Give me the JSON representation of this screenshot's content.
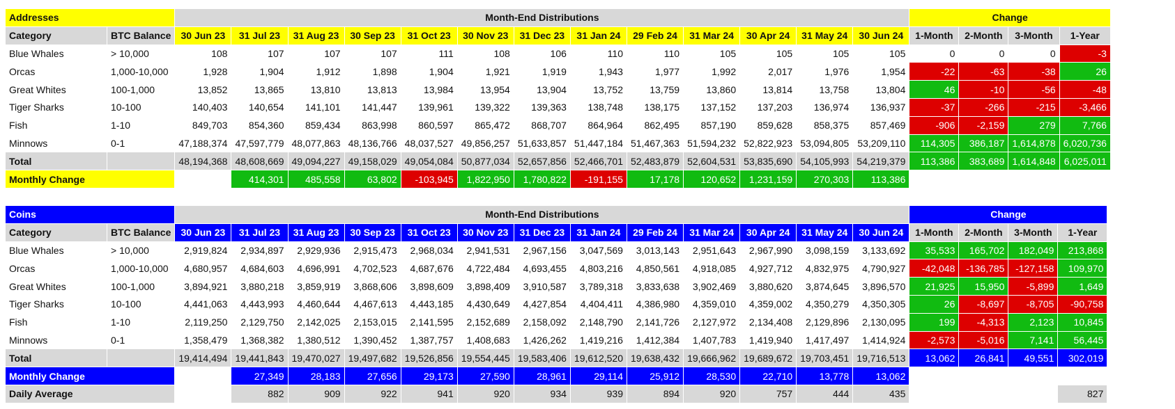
{
  "theme": {
    "addresses_accent": "#ffff00",
    "coins_accent": "#0000ff",
    "header_gray": "#d8d8d8",
    "positive": "#11bb11",
    "negative": "#dd0000"
  },
  "addresses": {
    "title": "Addresses",
    "section_header": "Month-End Distributions",
    "change_header": "Change",
    "category_label": "Category",
    "balance_label": "BTC Balance",
    "months": [
      "30 Jun 23",
      "31 Jul 23",
      "31 Aug 23",
      "30 Sep 23",
      "31 Oct 23",
      "30 Nov 23",
      "31 Dec 23",
      "31 Jan 24",
      "29 Feb 24",
      "31 Mar 24",
      "30 Apr 24",
      "31 May 24",
      "30 Jun 24"
    ],
    "change_labels": [
      "1-Month",
      "2-Month",
      "3-Month",
      "1-Year"
    ],
    "rows": [
      {
        "category": "Blue Whales",
        "balance": "> 10,000",
        "values": [
          "108",
          "107",
          "107",
          "107",
          "111",
          "108",
          "106",
          "110",
          "110",
          "105",
          "105",
          "105",
          "105"
        ],
        "changes": [
          "0",
          "0",
          "0",
          "-3"
        ],
        "change_colors": [
          "white",
          "white",
          "white",
          "red"
        ]
      },
      {
        "category": "Orcas",
        "balance": "1,000-10,000",
        "values": [
          "1,928",
          "1,904",
          "1,912",
          "1,898",
          "1,904",
          "1,921",
          "1,919",
          "1,943",
          "1,977",
          "1,992",
          "2,017",
          "1,976",
          "1,954"
        ],
        "changes": [
          "-22",
          "-63",
          "-38",
          "26"
        ],
        "change_colors": [
          "red",
          "red",
          "red",
          "green"
        ]
      },
      {
        "category": "Great Whites",
        "balance": "100-1,000",
        "values": [
          "13,852",
          "13,865",
          "13,810",
          "13,813",
          "13,984",
          "13,954",
          "13,904",
          "13,752",
          "13,759",
          "13,860",
          "13,814",
          "13,758",
          "13,804"
        ],
        "changes": [
          "46",
          "-10",
          "-56",
          "-48"
        ],
        "change_colors": [
          "green",
          "red",
          "red",
          "red"
        ]
      },
      {
        "category": "Tiger Sharks",
        "balance": "10-100",
        "values": [
          "140,403",
          "140,654",
          "141,101",
          "141,447",
          "139,961",
          "139,322",
          "139,363",
          "138,748",
          "138,175",
          "137,152",
          "137,203",
          "136,974",
          "136,937"
        ],
        "changes": [
          "-37",
          "-266",
          "-215",
          "-3,466"
        ],
        "change_colors": [
          "red",
          "red",
          "red",
          "red"
        ]
      },
      {
        "category": "Fish",
        "balance": "1-10",
        "values": [
          "849,703",
          "854,360",
          "859,434",
          "863,998",
          "860,597",
          "865,472",
          "868,707",
          "864,964",
          "862,495",
          "857,190",
          "859,628",
          "858,375",
          "857,469"
        ],
        "changes": [
          "-906",
          "-2,159",
          "279",
          "7,766"
        ],
        "change_colors": [
          "red",
          "red",
          "green",
          "green"
        ]
      },
      {
        "category": "Minnows",
        "balance": "0-1",
        "values": [
          "47,188,374",
          "47,597,779",
          "48,077,863",
          "48,136,766",
          "48,037,527",
          "49,856,257",
          "51,633,857",
          "51,447,184",
          "51,467,363",
          "51,594,232",
          "52,822,923",
          "53,094,805",
          "53,209,110"
        ],
        "changes": [
          "114,305",
          "386,187",
          "1,614,878",
          "6,020,736"
        ],
        "change_colors": [
          "green",
          "green",
          "green",
          "green"
        ]
      }
    ],
    "total": {
      "label": "Total",
      "values": [
        "48,194,368",
        "48,608,669",
        "49,094,227",
        "49,158,029",
        "49,054,084",
        "50,877,034",
        "52,657,856",
        "52,466,701",
        "52,483,879",
        "52,604,531",
        "53,835,690",
        "54,105,993",
        "54,219,379"
      ],
      "changes": [
        "113,386",
        "383,689",
        "1,614,848",
        "6,025,011"
      ],
      "change_colors": [
        "green",
        "green",
        "green",
        "green"
      ]
    },
    "monthly_change": {
      "label": "Monthly Change",
      "values": [
        "414,301",
        "485,558",
        "63,802",
        "-103,945",
        "1,822,950",
        "1,780,822",
        "-191,155",
        "17,178",
        "120,652",
        "1,231,159",
        "270,303",
        "113,386"
      ],
      "colors": [
        "green",
        "green",
        "green",
        "red",
        "green",
        "green",
        "red",
        "green",
        "green",
        "green",
        "green",
        "green"
      ]
    }
  },
  "coins": {
    "title": "Coins",
    "section_header": "Month-End Distributions",
    "change_header": "Change",
    "category_label": "Category",
    "balance_label": "BTC Balance",
    "months": [
      "30 Jun 23",
      "31 Jul 23",
      "31 Aug 23",
      "30 Sep 23",
      "31 Oct 23",
      "30 Nov 23",
      "31 Dec 23",
      "31 Jan 24",
      "29 Feb 24",
      "31 Mar 24",
      "30 Apr 24",
      "31 May 24",
      "30 Jun 24"
    ],
    "change_labels": [
      "1-Month",
      "2-Month",
      "3-Month",
      "1-Year"
    ],
    "rows": [
      {
        "category": "Blue Whales",
        "balance": "> 10,000",
        "values": [
          "2,919,824",
          "2,934,897",
          "2,929,936",
          "2,915,473",
          "2,968,034",
          "2,941,531",
          "2,967,156",
          "3,047,569",
          "3,013,143",
          "2,951,643",
          "2,967,990",
          "3,098,159",
          "3,133,692"
        ],
        "changes": [
          "35,533",
          "165,702",
          "182,049",
          "213,868"
        ],
        "change_colors": [
          "green",
          "green",
          "green",
          "green"
        ]
      },
      {
        "category": "Orcas",
        "balance": "1,000-10,000",
        "values": [
          "4,680,957",
          "4,684,603",
          "4,696,991",
          "4,702,523",
          "4,687,676",
          "4,722,484",
          "4,693,455",
          "4,803,216",
          "4,850,561",
          "4,918,085",
          "4,927,712",
          "4,832,975",
          "4,790,927"
        ],
        "changes": [
          "-42,048",
          "-136,785",
          "-127,158",
          "109,970"
        ],
        "change_colors": [
          "red",
          "red",
          "red",
          "green"
        ]
      },
      {
        "category": "Great Whites",
        "balance": "100-1,000",
        "values": [
          "3,894,921",
          "3,880,218",
          "3,859,919",
          "3,868,606",
          "3,898,609",
          "3,898,409",
          "3,910,587",
          "3,789,318",
          "3,833,638",
          "3,902,469",
          "3,880,620",
          "3,874,645",
          "3,896,570"
        ],
        "changes": [
          "21,925",
          "15,950",
          "-5,899",
          "1,649"
        ],
        "change_colors": [
          "green",
          "green",
          "red",
          "green"
        ]
      },
      {
        "category": "Tiger Sharks",
        "balance": "10-100",
        "values": [
          "4,441,063",
          "4,443,993",
          "4,460,644",
          "4,467,613",
          "4,443,185",
          "4,430,649",
          "4,427,854",
          "4,404,411",
          "4,386,980",
          "4,359,010",
          "4,359,002",
          "4,350,279",
          "4,350,305"
        ],
        "changes": [
          "26",
          "-8,697",
          "-8,705",
          "-90,758"
        ],
        "change_colors": [
          "green",
          "red",
          "red",
          "red"
        ]
      },
      {
        "category": "Fish",
        "balance": "1-10",
        "values": [
          "2,119,250",
          "2,129,750",
          "2,142,025",
          "2,153,015",
          "2,141,595",
          "2,152,689",
          "2,158,092",
          "2,148,790",
          "2,141,726",
          "2,127,972",
          "2,134,408",
          "2,129,896",
          "2,130,095"
        ],
        "changes": [
          "199",
          "-4,313",
          "2,123",
          "10,845"
        ],
        "change_colors": [
          "green",
          "red",
          "green",
          "green"
        ]
      },
      {
        "category": "Minnows",
        "balance": "0-1",
        "values": [
          "1,358,479",
          "1,368,382",
          "1,380,512",
          "1,390,452",
          "1,387,757",
          "1,408,683",
          "1,426,262",
          "1,419,216",
          "1,412,384",
          "1,407,783",
          "1,419,940",
          "1,417,497",
          "1,414,924"
        ],
        "changes": [
          "-2,573",
          "-5,016",
          "7,141",
          "56,445"
        ],
        "change_colors": [
          "red",
          "red",
          "green",
          "green"
        ]
      }
    ],
    "total": {
      "label": "Total",
      "values": [
        "19,414,494",
        "19,441,843",
        "19,470,027",
        "19,497,682",
        "19,526,856",
        "19,554,445",
        "19,583,406",
        "19,612,520",
        "19,638,432",
        "19,666,962",
        "19,689,672",
        "19,703,451",
        "19,716,513"
      ],
      "changes": [
        "13,062",
        "26,841",
        "49,551",
        "302,019"
      ],
      "change_colors": [
        "blue",
        "blue",
        "blue",
        "blue"
      ]
    },
    "monthly_change": {
      "label": "Monthly Change",
      "values": [
        "27,349",
        "28,183",
        "27,656",
        "29,173",
        "27,590",
        "28,961",
        "29,114",
        "25,912",
        "28,530",
        "22,710",
        "13,778",
        "13,062"
      ],
      "colors": [
        "blue",
        "blue",
        "blue",
        "blue",
        "blue",
        "blue",
        "blue",
        "blue",
        "blue",
        "blue",
        "blue",
        "blue"
      ]
    },
    "daily_average": {
      "label": "Daily Average",
      "values": [
        "882",
        "909",
        "922",
        "941",
        "920",
        "934",
        "939",
        "894",
        "920",
        "757",
        "444",
        "435"
      ],
      "year_value": "827"
    }
  }
}
